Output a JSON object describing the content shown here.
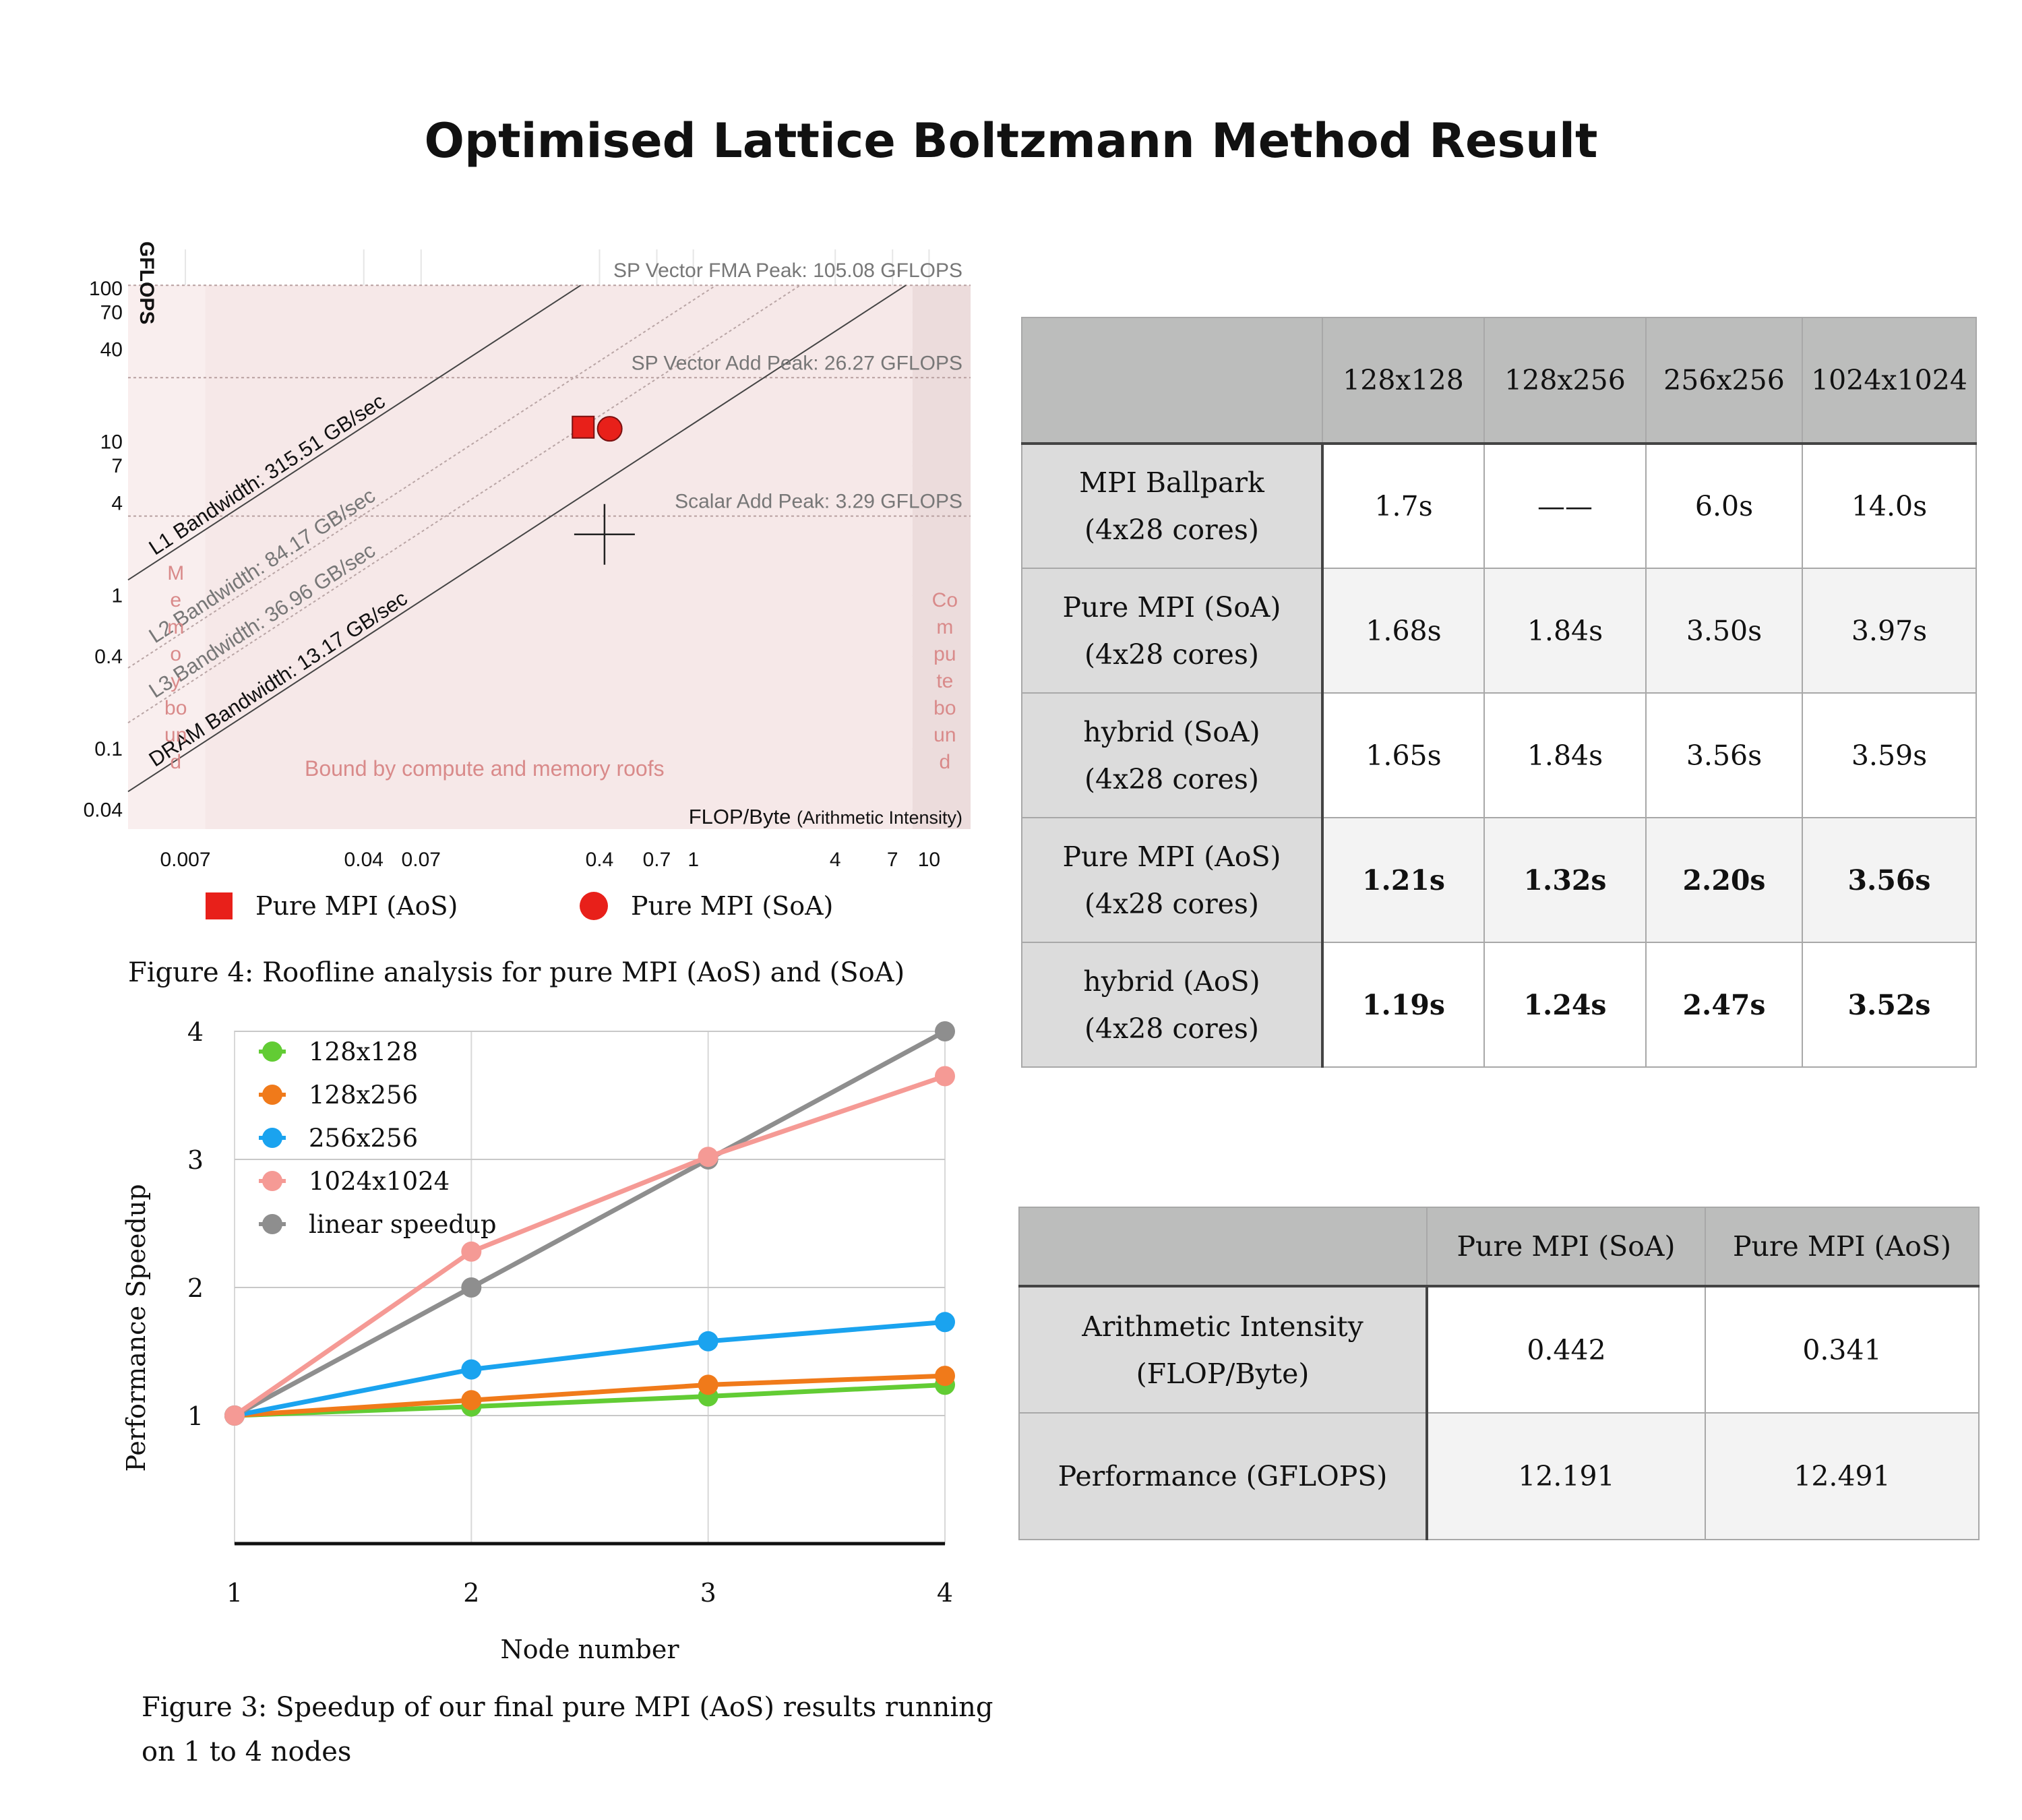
{
  "page_title": "Optimised Lattice Boltzmann Method Result",
  "colors": {
    "aos_marker": "#e8201a",
    "soa_marker": "#e8201a",
    "series_128x128": "#62cc34",
    "series_128x256": "#f07a1a",
    "series_256x256": "#1aa3ef",
    "series_1024x1024": "#f59a95",
    "series_linear": "#8e8e8e"
  },
  "roofline": {
    "y_axis_label": "GFLOPS",
    "x_axis_label": "FLOP/Byte",
    "x_axis_label_suffix": "(Arithmetic Intensity)",
    "y_ticks": [
      "100",
      "70",
      "40",
      "10",
      "7",
      "4",
      "1",
      "0.4",
      "0.1",
      "0.04"
    ],
    "x_ticks": [
      "0.007",
      "0.04",
      "0.07",
      "0.4",
      "0.7",
      "1",
      "4",
      "7",
      "10"
    ],
    "roof_labels": {
      "fma": "SP Vector FMA Peak: 105.08 GFLOPS",
      "add": "SP Vector Add Peak: 26.27 GFLOPS",
      "scalar": "Scalar Add Peak: 3.29 GFLOPS",
      "l1": "L1 Bandwidth: 315.51 GB/sec",
      "l2": "L2 Bandwidth: 84.17 GB/sec",
      "l3": "L3 Bandwidth: 36.96 GB/sec",
      "dram": "DRAM Bandwidth: 13.17 GB/sec"
    },
    "region_memory": [
      "M",
      "e",
      "m",
      "o",
      "y",
      "bo",
      "un",
      "d"
    ],
    "region_compute": [
      "Co",
      "m",
      "pu",
      "te",
      "bo",
      "un",
      "d"
    ],
    "region_both": "Bound by compute and memory roofs",
    "legend": {
      "aos": "Pure MPI (AoS)",
      "soa": "Pure MPI (SoA)"
    },
    "caption": "Figure 4: Roofline analysis for pure MPI (AoS) and (SoA)"
  },
  "chart_data": [
    {
      "type": "scatter",
      "log_scale": {
        "x": true,
        "y": true
      },
      "xlabel": "FLOP/Byte (Arithmetic Intensity)",
      "ylabel": "GFLOPS",
      "xlim": [
        0.004,
        15
      ],
      "ylim": [
        0.03,
        180
      ],
      "roofs": [
        {
          "name": "SP Vector FMA Peak",
          "gflops": 105.08
        },
        {
          "name": "SP Vector Add Peak",
          "gflops": 26.27
        },
        {
          "name": "Scalar Add Peak",
          "gflops": 3.29
        }
      ],
      "bandwidths": [
        {
          "name": "L1 Bandwidth",
          "gbs": 315.51
        },
        {
          "name": "L2 Bandwidth",
          "gbs": 84.17
        },
        {
          "name": "L3 Bandwidth",
          "gbs": 36.96
        },
        {
          "name": "DRAM Bandwidth",
          "gbs": 13.17
        }
      ],
      "points": [
        {
          "name": "Pure MPI (AoS)",
          "x": 0.341,
          "y": 12.491,
          "marker": "square"
        },
        {
          "name": "Pure MPI (SoA)",
          "x": 0.442,
          "y": 12.191,
          "marker": "circle"
        }
      ],
      "crosshair": {
        "x": 0.42,
        "y": 2.5
      }
    },
    {
      "type": "line",
      "xlabel": "Node number",
      "ylabel": "Performance Speedup",
      "x": [
        1,
        2,
        3,
        4
      ],
      "xlim": [
        1,
        4
      ],
      "ylim": [
        0,
        4
      ],
      "x_ticks": [
        "1",
        "2",
        "3",
        "4"
      ],
      "y_ticks": [
        "1",
        "2",
        "3",
        "4"
      ],
      "series": [
        {
          "name": "128x128",
          "values": [
            1.0,
            1.07,
            1.15,
            1.24
          ]
        },
        {
          "name": "128x256",
          "values": [
            1.0,
            1.12,
            1.24,
            1.31
          ]
        },
        {
          "name": "256x256",
          "values": [
            1.0,
            1.36,
            1.58,
            1.73
          ]
        },
        {
          "name": "1024x1024",
          "values": [
            1.0,
            2.28,
            3.02,
            3.65
          ]
        },
        {
          "name": "linear speedup",
          "values": [
            1.0,
            2.0,
            3.0,
            4.0
          ]
        }
      ],
      "caption": "Figure 3: Speedup of our final pure MPI (AoS) results running on 1 to 4 nodes"
    }
  ],
  "speedup_caption_line1": "Figure 3: Speedup of our final pure MPI (AoS) results running",
  "speedup_caption_line2": "on 1 to 4 nodes",
  "timing_table": {
    "columns": [
      "",
      "128x128",
      "128x256",
      "256x256",
      "1024x1024"
    ],
    "rows": [
      {
        "label1": "MPI Ballpark",
        "label2": "(4x28 cores)",
        "values": [
          "1.7s",
          "——",
          "6.0s",
          "14.0s"
        ]
      },
      {
        "label1": "Pure MPI (SoA)",
        "label2": "(4x28 cores)",
        "values": [
          "1.68s",
          "1.84s",
          "3.50s",
          "3.97s"
        ]
      },
      {
        "label1": "hybrid (SoA)",
        "label2": "(4x28 cores)",
        "values": [
          "1.65s",
          "1.84s",
          "3.56s",
          "3.59s"
        ]
      },
      {
        "label1": "Pure MPI (AoS)",
        "label2": "(4x28 cores)",
        "values": [
          "1.21s",
          "1.32s",
          "2.20s",
          "3.56s"
        ]
      },
      {
        "label1": "hybrid (AoS)",
        "label2": "(4x28 cores)",
        "values": [
          "1.19s",
          "1.24s",
          "2.47s",
          "3.52s"
        ]
      }
    ]
  },
  "intensity_table": {
    "columns": [
      "",
      "Pure MPI (SoA)",
      "Pure MPI (AoS)"
    ],
    "rows": [
      {
        "label1": "Arithmetic Intensity",
        "label2": "(FLOP/Byte)",
        "values": [
          "0.442",
          "0.341"
        ]
      },
      {
        "label1": "Performance (GFLOPS)",
        "label2": "",
        "values": [
          "12.191",
          "12.491"
        ]
      }
    ]
  }
}
